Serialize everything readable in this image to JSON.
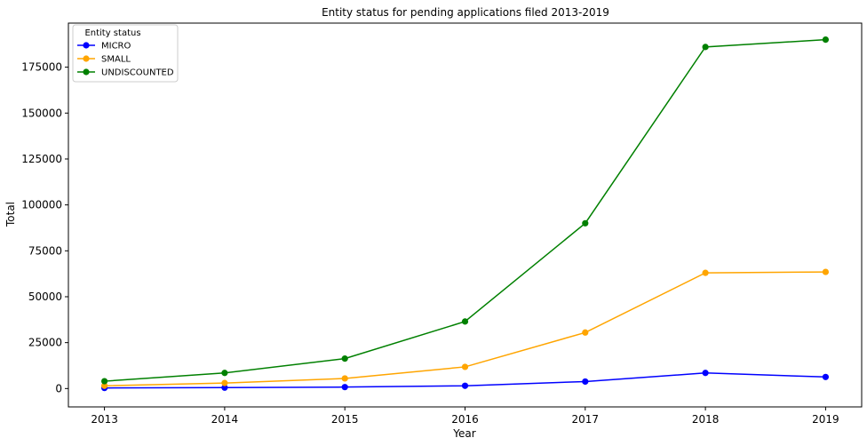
{
  "chart_data": {
    "type": "line",
    "title": "Entity status for pending applications filed 2013-2019",
    "xlabel": "Year",
    "ylabel": "Total",
    "x": [
      2013,
      2014,
      2015,
      2016,
      2017,
      2018,
      2019
    ],
    "x_tick_labels": [
      "2013",
      "2014",
      "2015",
      "2016",
      "2017",
      "2018",
      "2019"
    ],
    "y_ticks": [
      0,
      25000,
      50000,
      75000,
      100000,
      125000,
      150000,
      175000
    ],
    "y_tick_labels": [
      "0",
      "25000",
      "50000",
      "75000",
      "100000",
      "125000",
      "150000",
      "175000"
    ],
    "xlim": [
      2012.7,
      2019.3
    ],
    "ylim": [
      -10000,
      199000
    ],
    "grid": false,
    "legend": {
      "title": "Entity status",
      "placement": "top-left"
    },
    "series": [
      {
        "name": "MICRO",
        "color": "#0000ff",
        "marker": "circle",
        "values": [
          300,
          500,
          800,
          1500,
          3800,
          8500,
          6300
        ]
      },
      {
        "name": "SMALL",
        "color": "#ffa500",
        "marker": "circle",
        "values": [
          1500,
          3000,
          5500,
          11800,
          30500,
          63000,
          63500
        ]
      },
      {
        "name": "UNDISCOUNTED",
        "color": "#008000",
        "marker": "circle",
        "values": [
          4000,
          8500,
          16300,
          36500,
          90000,
          186000,
          190000
        ]
      }
    ]
  }
}
